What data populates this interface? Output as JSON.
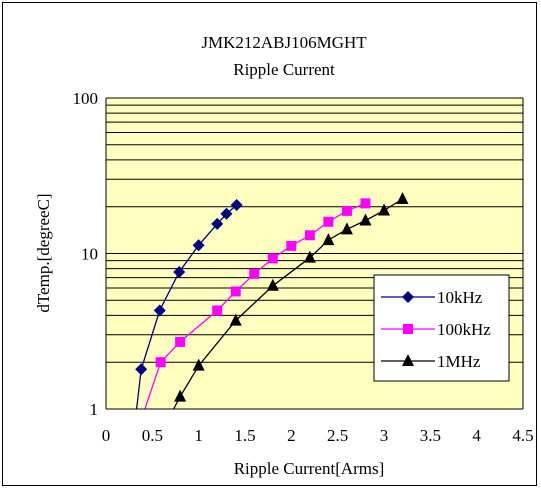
{
  "chart_data": {
    "type": "line",
    "title": "JMK212ABJ106MGHT",
    "subtitle": "Ripple Current",
    "xlabel": "Ripple Current[Arms]",
    "ylabel": "dTemp.[degreeC]",
    "xlim": [
      0,
      4.5
    ],
    "ylim": [
      1,
      100
    ],
    "yscale": "log",
    "grid": true,
    "legend_position": "lower-right",
    "x_ticks": [
      "0",
      "0.5",
      "1",
      "1.5",
      "2",
      "2.5",
      "3",
      "3.5",
      "4",
      "4.5"
    ],
    "y_ticks": [
      "1",
      "10",
      "100"
    ],
    "plot_background": "#ffffc0",
    "series": [
      {
        "name": "10kHz",
        "color": "#000080",
        "marker": "diamond",
        "x": [
          0.38,
          0.58,
          0.79,
          1.0,
          1.2,
          1.3,
          1.41
        ],
        "y": [
          1.8,
          4.3,
          7.6,
          11.3,
          15.5,
          18.0,
          20.5
        ],
        "curve_start": [
          0.33,
          1.0
        ]
      },
      {
        "name": "100kHz",
        "color": "#ff00ff",
        "marker": "square",
        "x": [
          0.59,
          0.8,
          1.2,
          1.4,
          1.6,
          1.8,
          2.0,
          2.2,
          2.4,
          2.6,
          2.8
        ],
        "y": [
          2.0,
          2.7,
          4.3,
          5.7,
          7.4,
          9.3,
          11.2,
          13.1,
          16.0,
          18.8,
          21.0
        ],
        "curve_start": [
          0.42,
          1.0
        ]
      },
      {
        "name": "1MHz",
        "color": "#000000",
        "marker": "triangle",
        "x": [
          0.8,
          1.0,
          1.4,
          1.8,
          2.2,
          2.4,
          2.6,
          2.8,
          3.0,
          3.2
        ],
        "y": [
          1.2,
          1.9,
          3.7,
          6.2,
          9.4,
          12.2,
          14.3,
          16.3,
          18.9,
          22.4
        ],
        "curve_start": [
          0.73,
          1.0
        ]
      }
    ]
  }
}
